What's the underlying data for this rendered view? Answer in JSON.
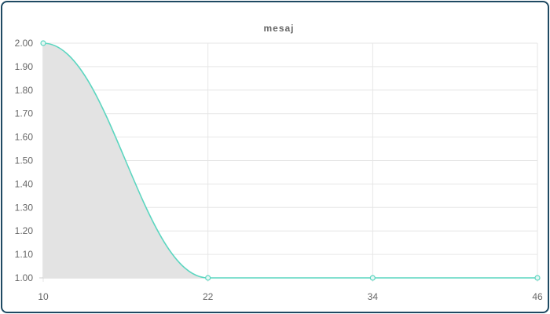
{
  "chart_data": {
    "type": "area",
    "title": "mesaj",
    "xlabel": "",
    "ylabel": "",
    "x": [
      10,
      22,
      34,
      46
    ],
    "xlim": [
      10,
      46
    ],
    "ylim": [
      1.0,
      2.0
    ],
    "y_ticks": [
      "2.00",
      "1.90",
      "1.80",
      "1.70",
      "1.60",
      "1.50",
      "1.40",
      "1.30",
      "1.20",
      "1.10",
      "1.00"
    ],
    "x_ticks": [
      "10",
      "22",
      "34",
      "46"
    ],
    "grid": true,
    "legend": "none",
    "series": [
      {
        "values": [
          2.0,
          1.0,
          1.0,
          1.0
        ],
        "line_color": "#5cd6c0",
        "fill_color": "#e3e3e3"
      }
    ]
  }
}
